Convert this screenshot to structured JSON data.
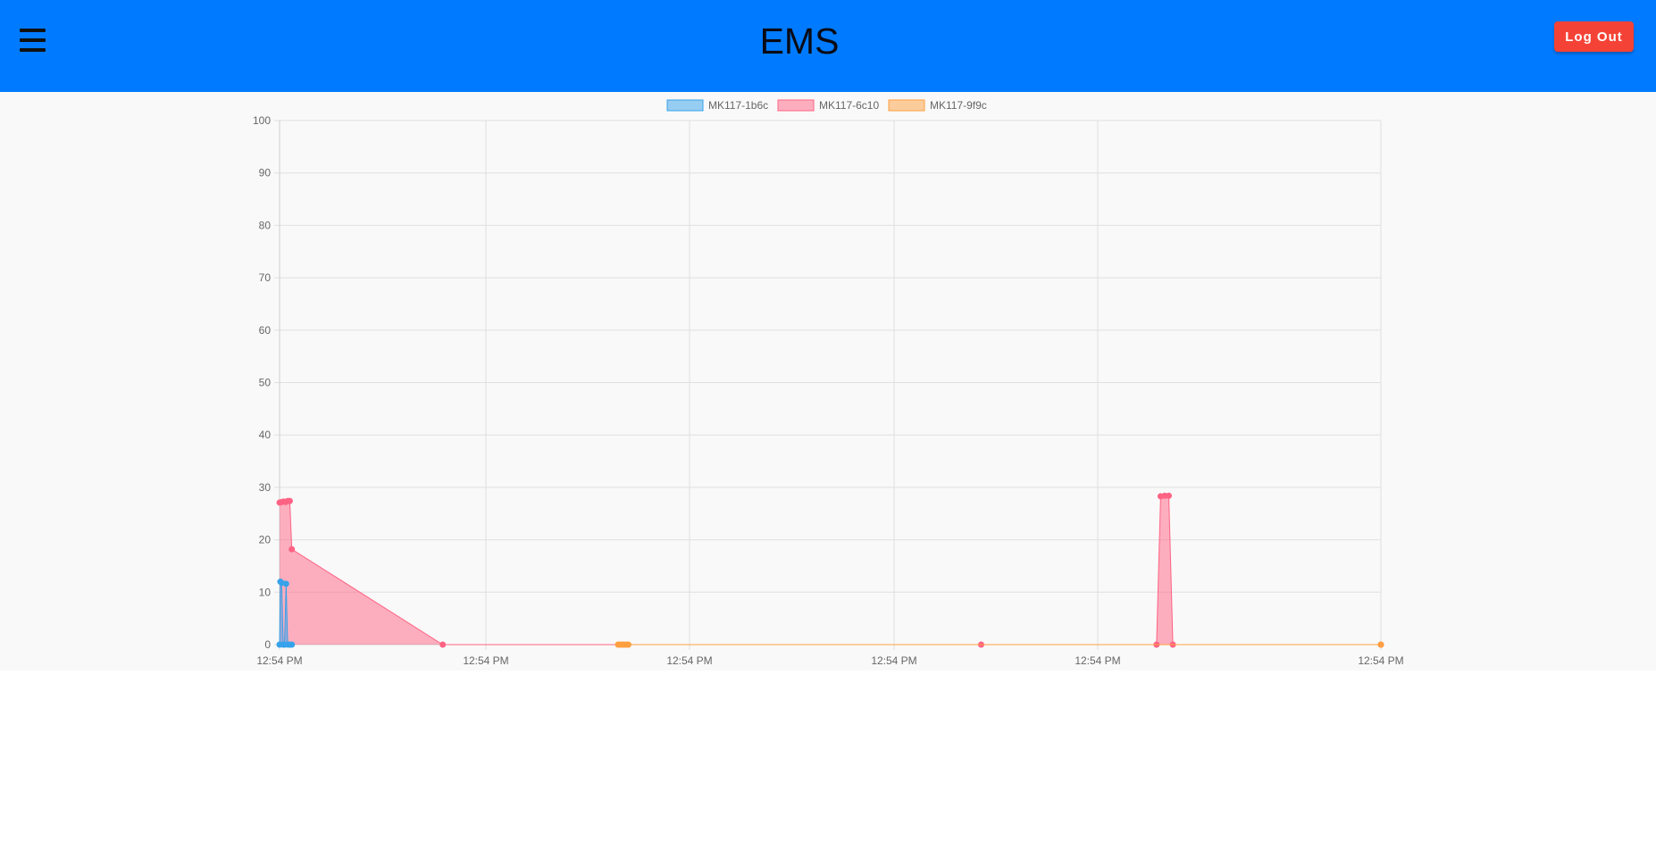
{
  "header": {
    "title": "EMS",
    "menu_icon": "hamburger-menu-icon",
    "logout_label": "Log Out",
    "bar_color": "#007bff",
    "logout_color": "#f44336"
  },
  "chart_data": {
    "type": "area",
    "title": "",
    "xlabel": "",
    "ylabel": "",
    "ylim": [
      0,
      100
    ],
    "y_ticks": [
      0,
      10,
      20,
      30,
      40,
      50,
      60,
      70,
      80,
      90,
      100
    ],
    "x_ticks": [
      "12:54 PM",
      "12:54 PM",
      "12:54 PM",
      "12:54 PM",
      "12:54 PM",
      "12:54 PM"
    ],
    "grid": true,
    "legend_position": "top",
    "series": [
      {
        "name": "MK117-1b6c",
        "color": "#36a2eb",
        "fill": "rgba(54,162,235,0.5)",
        "points": [
          [
            0.0,
            0
          ],
          [
            0.2,
            12.0
          ],
          [
            0.5,
            11.8
          ],
          [
            0.9,
            0
          ],
          [
            1.2,
            0
          ],
          [
            1.6,
            11.6
          ],
          [
            2.0,
            0
          ],
          [
            2.5,
            0
          ],
          [
            3.0,
            0
          ]
        ]
      },
      {
        "name": "MK117-6c10",
        "color": "#ff6384",
        "fill": "rgba(255,99,132,0.5)",
        "points": [
          [
            0.0,
            27.1
          ],
          [
            0.5,
            27.2
          ],
          [
            1.0,
            27.3
          ],
          [
            1.5,
            27.2
          ],
          [
            2.0,
            27.4
          ],
          [
            2.5,
            27.4
          ],
          [
            3.0,
            18.2
          ],
          [
            40.0,
            0
          ],
          [
            172.0,
            0
          ],
          [
            215.0,
            0
          ],
          [
            216.0,
            28.3
          ],
          [
            217.0,
            28.4
          ],
          [
            218.0,
            28.4
          ],
          [
            219.0,
            0
          ],
          [
            270.0,
            0
          ]
        ]
      },
      {
        "name": "MK117-9f9c",
        "color": "#ff9f40",
        "fill": "rgba(255,159,64,0.5)",
        "points": [
          [
            83.0,
            0
          ],
          [
            83.5,
            0
          ],
          [
            84.0,
            0
          ],
          [
            84.5,
            0
          ],
          [
            85.0,
            0
          ],
          [
            85.5,
            0
          ],
          [
            270.0,
            0
          ]
        ]
      }
    ]
  }
}
